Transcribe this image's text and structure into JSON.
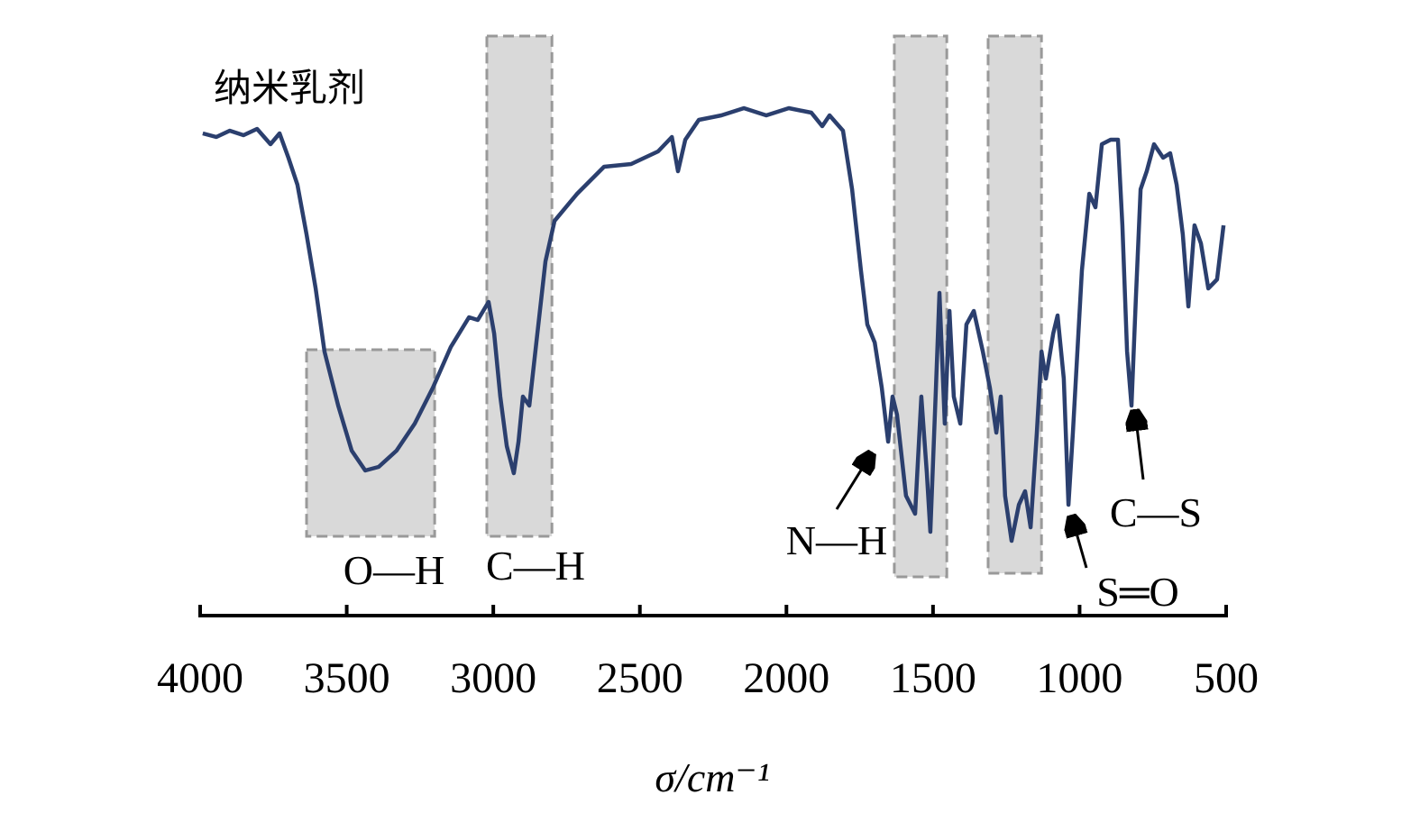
{
  "chart_data": {
    "type": "line",
    "xlabel": "σ/cm⁻¹",
    "xlim": [
      4000,
      500
    ],
    "xticks": [
      4000,
      3500,
      3000,
      2500,
      2000,
      1500,
      1000,
      500
    ],
    "ylim": [
      -4,
      116
    ],
    "regions": [
      {
        "x": [
          3637,
          3200
        ],
        "y": [
          46.4,
          5
        ]
      },
      {
        "x": [
          3022,
          2800
        ],
        "y": [
          116,
          5
        ]
      },
      {
        "x": [
          1632,
          1453
        ],
        "y": [
          116,
          -4
        ]
      },
      {
        "x": [
          1312,
          1130
        ],
        "y": [
          116,
          -3.2
        ]
      }
    ],
    "annotations": [
      "O—H",
      "C—H",
      "N—H",
      "S═O",
      "C—S"
    ],
    "series": [
      {
        "name": "纳米乳剂",
        "color": "#2b3f6e",
        "x": [
          3991,
          3945,
          3899,
          3852,
          3806,
          3760,
          3729,
          3699,
          3668,
          3637,
          3606,
          3576,
          3529,
          3483,
          3437,
          3391,
          3330,
          3268,
          3206,
          3145,
          3083,
          3053,
          3016,
          2997,
          2976,
          2954,
          2930,
          2914,
          2899,
          2877,
          2853,
          2822,
          2791,
          2714,
          2622,
          2530,
          2438,
          2391,
          2370,
          2345,
          2299,
          2222,
          2145,
          2069,
          1992,
          1915,
          1878,
          1853,
          1807,
          1776,
          1746,
          1724,
          1699,
          1675,
          1653,
          1638,
          1623,
          1592,
          1561,
          1540,
          1521,
          1509,
          1490,
          1478,
          1460,
          1444,
          1429,
          1407,
          1386,
          1361,
          1330,
          1306,
          1284,
          1269,
          1254,
          1232,
          1207,
          1186,
          1167,
          1146,
          1130,
          1115,
          1090,
          1075,
          1054,
          1038,
          1023,
          992,
          967,
          946,
          924,
          894,
          869,
          854,
          838,
          823,
          808,
          792,
          771,
          746,
          715,
          691,
          669,
          648,
          629,
          608,
          586,
          561,
          531,
          509
        ],
        "values": [
          94.4,
          93.6,
          95,
          94,
          95.4,
          92,
          94.4,
          89,
          83,
          72,
          60,
          46,
          34,
          24,
          19.6,
          20.4,
          24,
          30,
          38,
          47,
          53.6,
          53,
          57,
          50,
          36,
          25,
          19,
          26,
          36,
          34,
          48,
          66,
          75,
          81,
          87,
          87.6,
          90.4,
          93.6,
          86,
          93,
          97.4,
          98.4,
          100,
          98.4,
          100,
          99,
          96,
          98.4,
          95,
          82,
          64,
          52,
          48,
          38,
          26,
          36,
          32,
          14,
          10,
          36,
          19,
          6,
          38,
          59,
          30,
          55,
          36,
          30,
          52,
          55,
          46,
          38,
          28,
          36,
          14,
          4,
          12,
          15,
          7,
          28,
          46,
          40,
          50,
          54,
          40,
          12,
          28,
          64,
          81,
          78,
          92,
          93,
          93,
          74,
          46,
          34,
          58,
          82,
          86,
          92,
          89,
          90,
          83,
          72,
          56,
          74,
          70,
          60,
          62,
          74
        ]
      }
    ]
  }
}
